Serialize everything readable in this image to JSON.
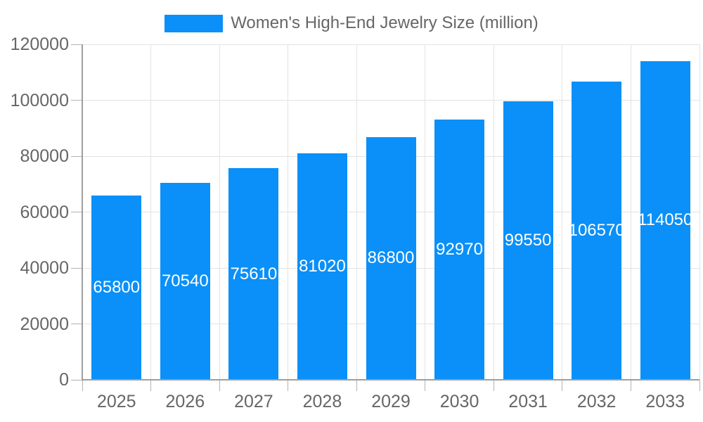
{
  "chart_data": {
    "type": "bar",
    "categories": [
      "2025",
      "2026",
      "2027",
      "2028",
      "2029",
      "2030",
      "2031",
      "2032",
      "2033"
    ],
    "series": [
      {
        "name": "Women's High-End Jewelry Size (million)",
        "values": [
          65800,
          70540,
          75610,
          81020,
          86800,
          92970,
          99550,
          106570,
          114050
        ]
      }
    ],
    "title": "Women's High-End Jewelry Size (million)",
    "xlabel": "",
    "ylabel": "",
    "ylim": [
      0,
      120000
    ],
    "yticks": [
      0,
      20000,
      40000,
      60000,
      80000,
      100000,
      120000
    ],
    "ytick_labels": [
      "0",
      "20000",
      "40000",
      "60000",
      "80000",
      "100000",
      "120000"
    ],
    "grid": true,
    "legend_position": "top",
    "value_labels_position": "inside-center"
  },
  "legend": {
    "label": "Women's High-End Jewelry Size (million)"
  },
  "colors": {
    "bar": "#0A90F8",
    "tick_text": "#666666",
    "legend_text": "#666666",
    "value_label": "#FFFFFF",
    "grid_line": "#E3E3E3",
    "axis_line": "#9E9E9E",
    "tick_mark": "#B3B3B3",
    "background": "#FFFFFF"
  }
}
